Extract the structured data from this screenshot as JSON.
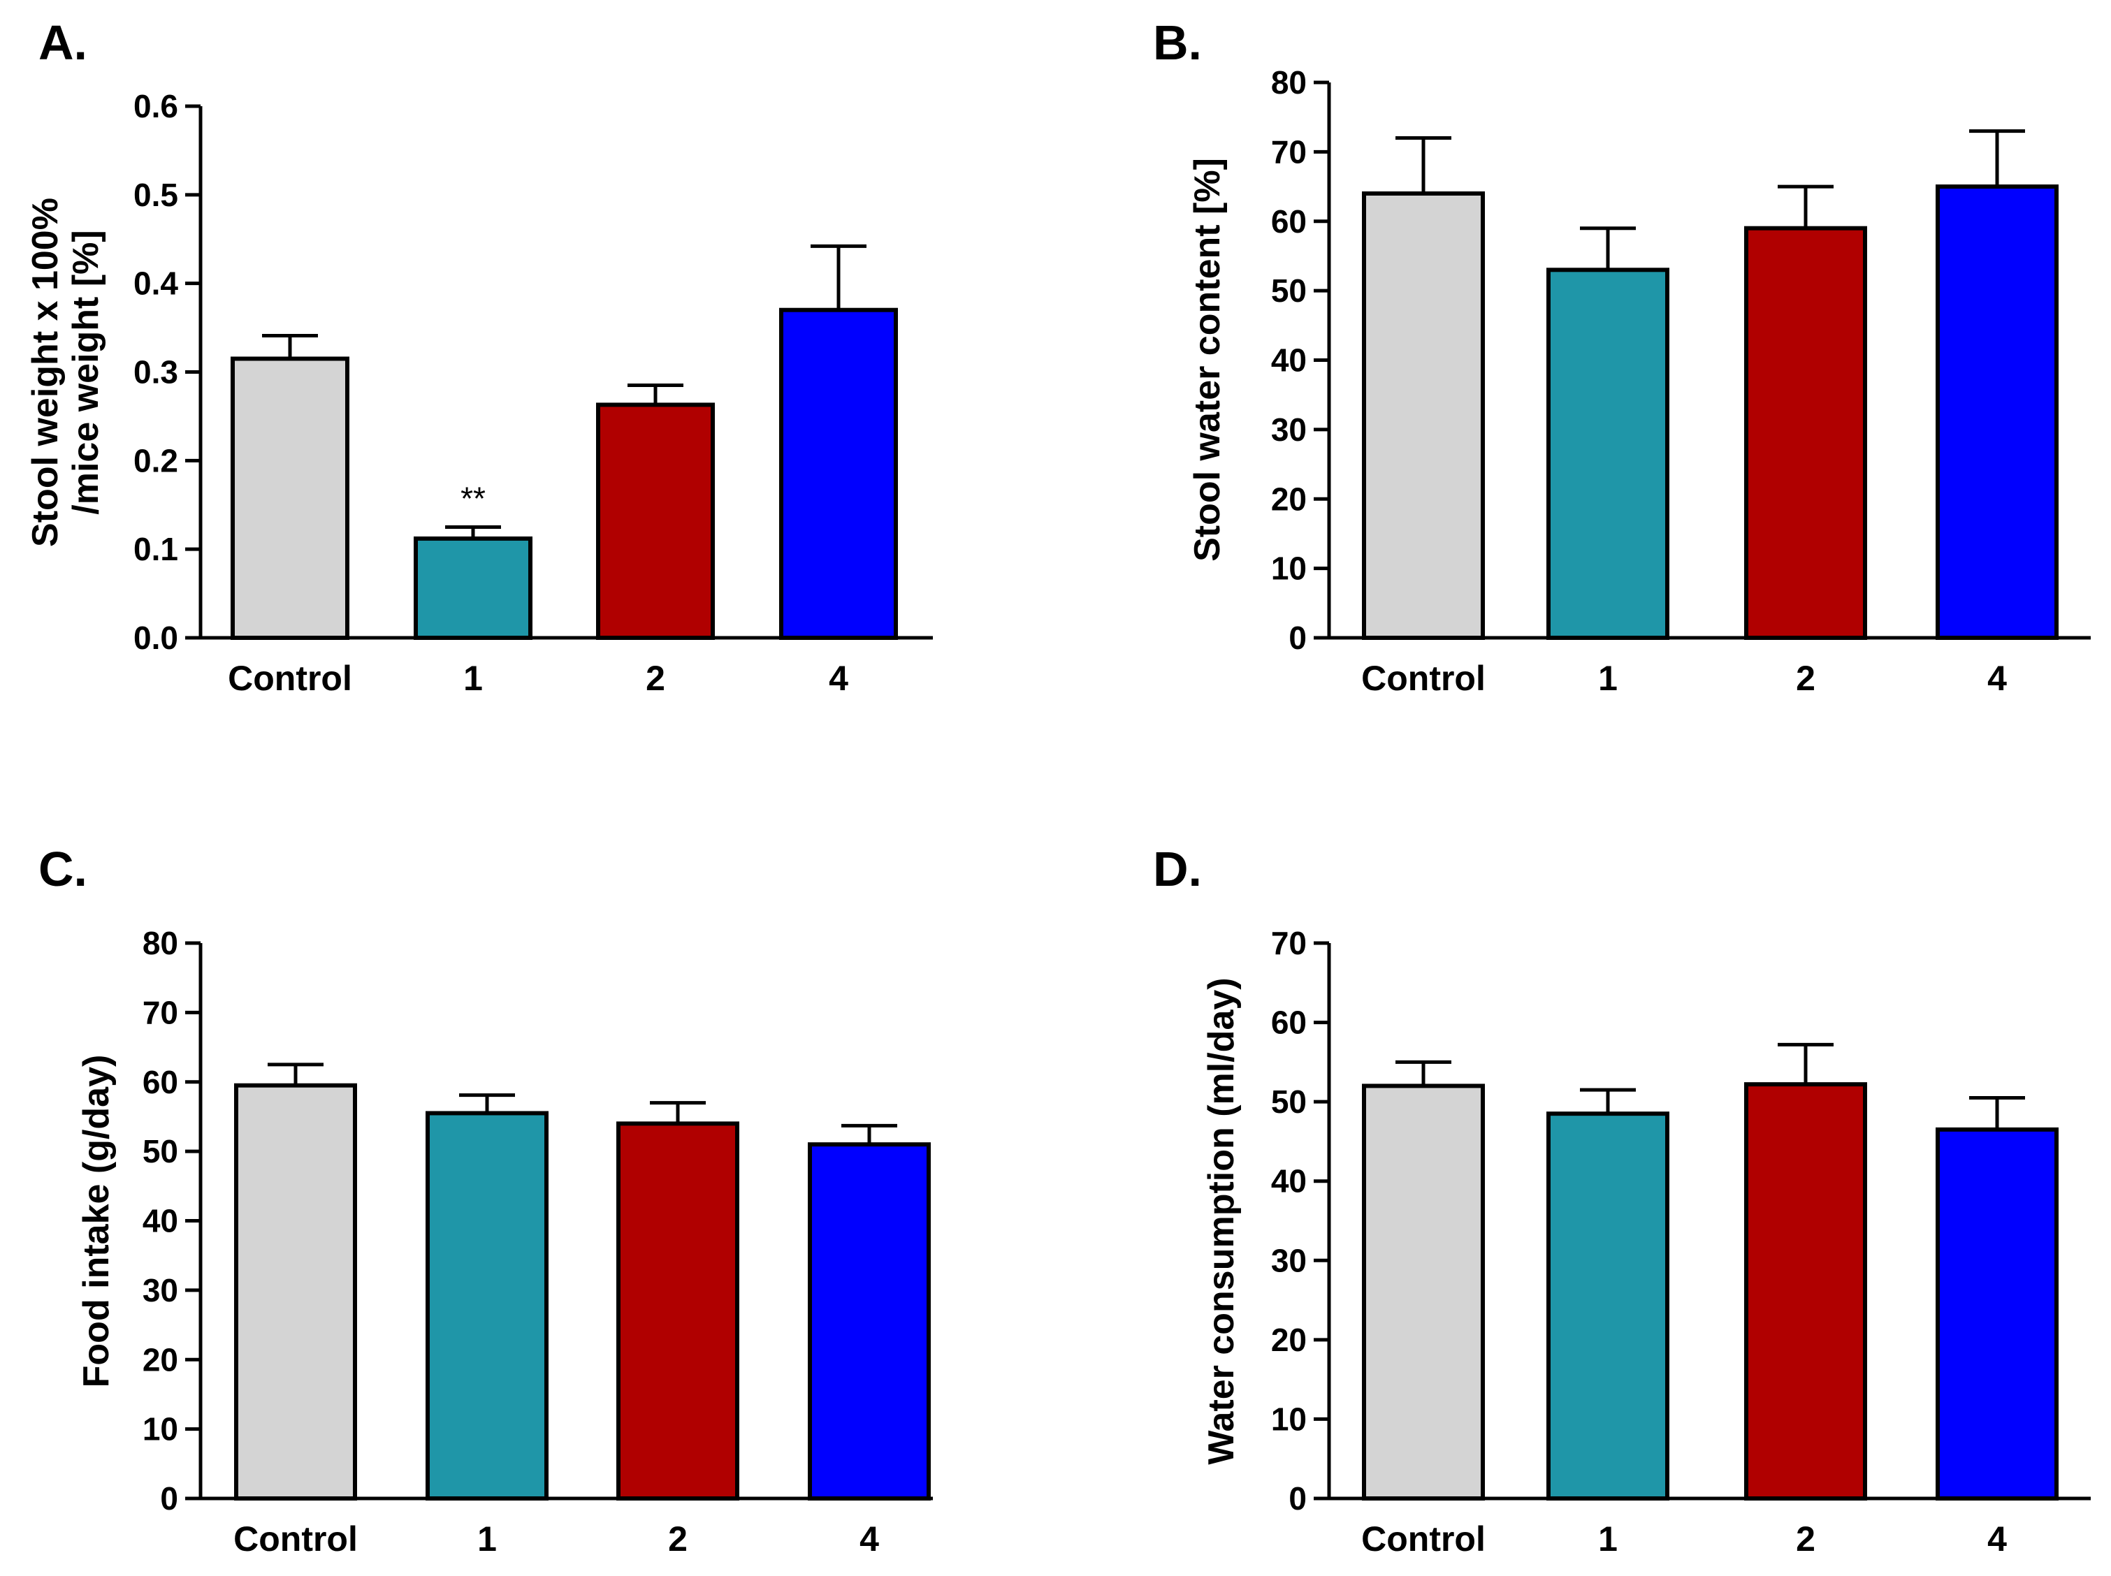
{
  "figure": {
    "categories": [
      "Control",
      "1",
      "2",
      "4"
    ],
    "colors": {
      "Control": "#d4d4d4",
      "1": "#1f96a8",
      "2": "#b00000",
      "4": "#0000ff"
    }
  },
  "chart_data": [
    {
      "panel": "A.",
      "type": "bar",
      "categories": [
        "Control",
        "1",
        "2",
        "4"
      ],
      "values": [
        0.315,
        0.112,
        0.263,
        0.37
      ],
      "errors": [
        0.026,
        0.013,
        0.022,
        0.072
      ],
      "ylabel": [
        "Stool weight x 100%",
        "/mice weight [%]"
      ],
      "ylim": [
        0,
        0.6
      ],
      "yticks": [
        0.0,
        0.1,
        0.2,
        0.3,
        0.4,
        0.5,
        0.6
      ],
      "ytick_labels": [
        "0.0",
        "0.1",
        "0.2",
        "0.3",
        "0.4",
        "0.5",
        "0.6"
      ],
      "annotations": [
        {
          "category": "1",
          "text": "**"
        }
      ]
    },
    {
      "panel": "B.",
      "type": "bar",
      "categories": [
        "Control",
        "1",
        "2",
        "4"
      ],
      "values": [
        64,
        53,
        59,
        65
      ],
      "errors": [
        8,
        6,
        6,
        8
      ],
      "ylabel": [
        "Stool water content [%]"
      ],
      "ylim": [
        0,
        80
      ],
      "yticks": [
        0,
        10,
        20,
        30,
        40,
        50,
        60,
        70,
        80
      ],
      "ytick_labels": [
        "0",
        "10",
        "20",
        "30",
        "40",
        "50",
        "60",
        "70",
        "80"
      ],
      "annotations": []
    },
    {
      "panel": "C.",
      "type": "bar",
      "categories": [
        "Control",
        "1",
        "2",
        "4"
      ],
      "values": [
        59.5,
        55.5,
        54,
        51
      ],
      "errors": [
        3,
        2.6,
        3,
        2.7
      ],
      "ylabel": [
        "Food intake (g/day)"
      ],
      "ylim": [
        0,
        80
      ],
      "yticks": [
        0,
        10,
        20,
        30,
        40,
        50,
        60,
        70,
        80
      ],
      "ytick_labels": [
        "0",
        "10",
        "20",
        "30",
        "40",
        "50",
        "60",
        "70",
        "80"
      ],
      "annotations": []
    },
    {
      "panel": "D.",
      "type": "bar",
      "categories": [
        "Control",
        "1",
        "2",
        "4"
      ],
      "values": [
        52,
        48.5,
        52.2,
        46.5
      ],
      "errors": [
        3,
        3,
        5,
        4
      ],
      "ylabel": [
        "Water consumption (ml/day)"
      ],
      "ylim": [
        0,
        70
      ],
      "yticks": [
        0,
        10,
        20,
        30,
        40,
        50,
        60,
        70
      ],
      "ytick_labels": [
        "0",
        "10",
        "20",
        "30",
        "40",
        "50",
        "60",
        "70"
      ],
      "annotations": []
    }
  ]
}
